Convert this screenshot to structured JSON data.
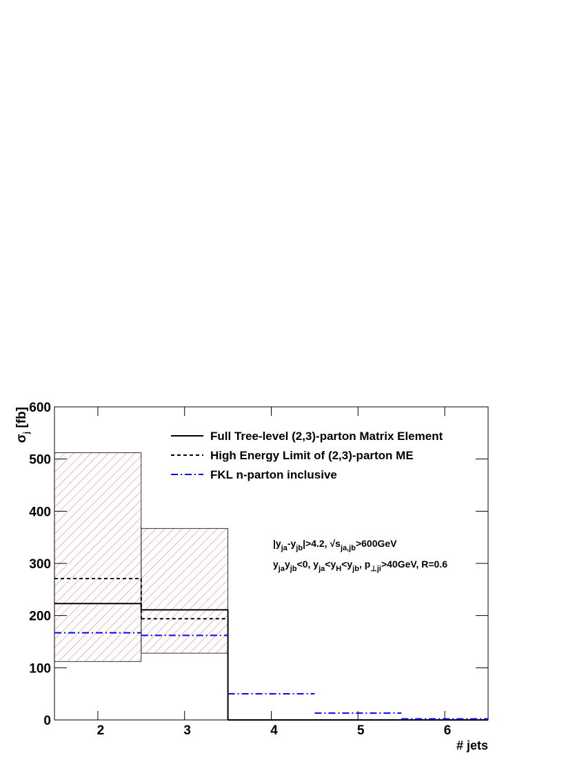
{
  "chart_data": {
    "type": "histogram",
    "bins": [
      1.5,
      2.5,
      3.5,
      4.5,
      5.5,
      6.5
    ],
    "xlim": [
      1.5,
      6.5
    ],
    "xticks": [
      2,
      3,
      4,
      5,
      6
    ],
    "ylim": [
      0,
      600
    ],
    "yticks": [
      0,
      100,
      200,
      300,
      400,
      500,
      600
    ],
    "x_label": "# jets",
    "y_label": [
      {
        "text": "σ"
      },
      {
        "sub": "j"
      },
      {
        "text": " [fb]"
      }
    ],
    "series": [
      {
        "name": "Full Tree-level (2,3)-parton Matrix Element",
        "color": "#000000",
        "style": "solid",
        "values": [
          223,
          211,
          0,
          0,
          0
        ]
      },
      {
        "name": "High Energy Limit of (2,3)-parton ME",
        "color": "#000000",
        "style": "dashed",
        "values": [
          271,
          194,
          null,
          null,
          null
        ]
      },
      {
        "name": "FKL n-parton inclusive",
        "color": "#0000ff",
        "style": "dashdot",
        "values": [
          167,
          162,
          50,
          13,
          2
        ]
      }
    ],
    "band": {
      "color": "#e05050",
      "lower": [
        112,
        128,
        null,
        null,
        null
      ],
      "upper": [
        512,
        367,
        null,
        null,
        null
      ]
    },
    "annotations": [
      [
        {
          "text": "|y"
        },
        {
          "sub": "ja"
        },
        {
          "text": "-y"
        },
        {
          "sub": "jb"
        },
        {
          "text": "|>4.2, √s"
        },
        {
          "sub": "ja,jb"
        },
        {
          "text": ">600GeV"
        }
      ],
      [
        {
          "text": "y"
        },
        {
          "sub": "ja"
        },
        {
          "text": "y"
        },
        {
          "sub": "jb"
        },
        {
          "text": "<0, y"
        },
        {
          "sub": "ja"
        },
        {
          "text": "<y"
        },
        {
          "sub": "H"
        },
        {
          "text": "<y"
        },
        {
          "sub": "jb"
        },
        {
          "text": ", p"
        },
        {
          "sub": "⊥ji"
        },
        {
          "text": ">40GeV, R=0.6"
        }
      ]
    ]
  }
}
